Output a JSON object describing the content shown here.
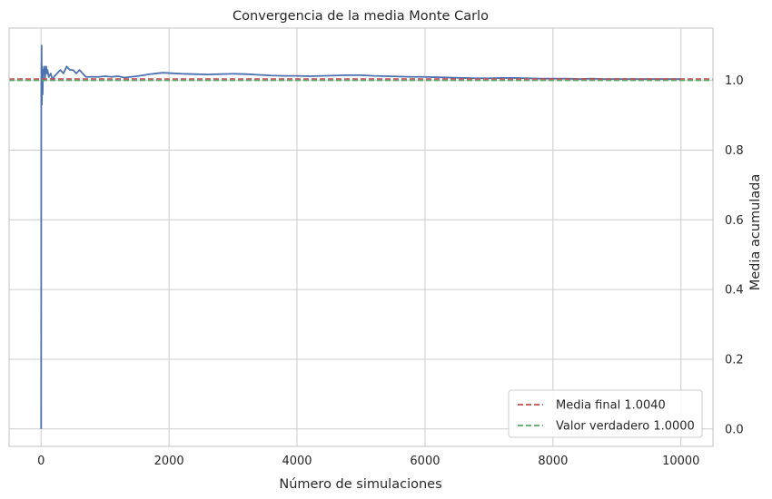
{
  "chart_data": {
    "type": "line",
    "title": "Convergencia de la media Monte Carlo",
    "xlabel": "Número de simulaciones",
    "ylabel": "Media acumulada",
    "xlim": [
      -500,
      10500
    ],
    "ylim": [
      -0.05,
      1.15
    ],
    "xticks": [
      0,
      2000,
      4000,
      6000,
      8000,
      10000
    ],
    "yticks": [
      0.0,
      0.2,
      0.4,
      0.6,
      0.8,
      1.0
    ],
    "xtick_labels": [
      "0",
      "2000",
      "4000",
      "6000",
      "8000",
      "10000"
    ],
    "ytick_labels": [
      "0.0",
      "0.2",
      "0.4",
      "0.6",
      "0.8",
      "1.0"
    ],
    "y_axis_side": "right",
    "grid": true,
    "legend_position": "lower-right",
    "series": [
      {
        "color": "#4c72b0",
        "style": "solid",
        "x": [
          1,
          2,
          3,
          4,
          5,
          6,
          8,
          10,
          12,
          15,
          20,
          25,
          30,
          40,
          50,
          60,
          70,
          80,
          90,
          100,
          120,
          150,
          180,
          200,
          250,
          300,
          350,
          400,
          450,
          500,
          550,
          600,
          650,
          700,
          800,
          900,
          1000,
          1100,
          1200,
          1300,
          1400,
          1500,
          1600,
          1700,
          1800,
          1900,
          2000,
          2200,
          2400,
          2600,
          2800,
          3000,
          3200,
          3400,
          3600,
          3800,
          4000,
          4200,
          4400,
          4600,
          4800,
          5000,
          5200,
          5400,
          5600,
          5800,
          6000,
          6200,
          6400,
          6600,
          6800,
          7000,
          7200,
          7400,
          7600,
          7800,
          8000,
          8200,
          8400,
          8600,
          8800,
          9000,
          9200,
          9400,
          9600,
          9800,
          10000
        ],
        "values": [
          0.0,
          0.35,
          0.92,
          0.98,
          1.05,
          0.94,
          1.1,
          1.03,
          0.93,
          1.04,
          1.01,
          0.96,
          1.03,
          1.02,
          1.04,
          1.0,
          1.03,
          1.04,
          1.02,
          1.03,
          1.01,
          1.02,
          1.0,
          1.01,
          1.02,
          1.03,
          1.02,
          1.04,
          1.03,
          1.03,
          1.02,
          1.03,
          1.02,
          1.01,
          1.01,
          1.01,
          1.012,
          1.01,
          1.012,
          1.008,
          1.01,
          1.012,
          1.015,
          1.018,
          1.02,
          1.022,
          1.021,
          1.019,
          1.018,
          1.017,
          1.018,
          1.019,
          1.018,
          1.016,
          1.014,
          1.013,
          1.013,
          1.012,
          1.013,
          1.014,
          1.015,
          1.015,
          1.013,
          1.012,
          1.011,
          1.01,
          1.01,
          1.009,
          1.008,
          1.007,
          1.006,
          1.006,
          1.007,
          1.007,
          1.006,
          1.005,
          1.005,
          1.005,
          1.004,
          1.005,
          1.004,
          1.004,
          1.004,
          1.004,
          1.004,
          1.004,
          1.004
        ]
      },
      {
        "name": "Media final 1.0040",
        "color": "#c44e52",
        "style": "dashed",
        "y": 1.004
      },
      {
        "name": "Valor verdadero 1.0000",
        "color": "#55a868",
        "style": "dashed",
        "y": 1.0
      }
    ]
  }
}
